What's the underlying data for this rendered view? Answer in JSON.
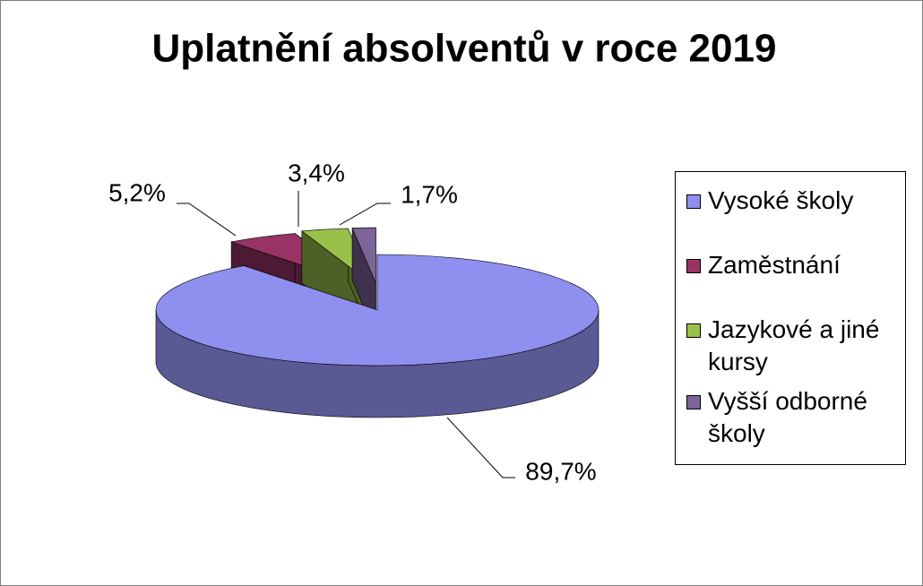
{
  "chart_data": {
    "type": "pie3d",
    "title": "Uplatnění absolventů v roce 2019",
    "categories": [
      "Vysoké školy",
      "Zaměstnání",
      "Jazykové a jiné kursy",
      "Vyšší odborné školy"
    ],
    "values": [
      89.7,
      5.2,
      3.4,
      1.7
    ],
    "value_labels": [
      "89,7%",
      "5,2%",
      "3,4%",
      "1,7%"
    ],
    "colors": [
      "#8f8fef",
      "#993366",
      "#99c04a",
      "#7d6499"
    ],
    "legend": "right"
  }
}
